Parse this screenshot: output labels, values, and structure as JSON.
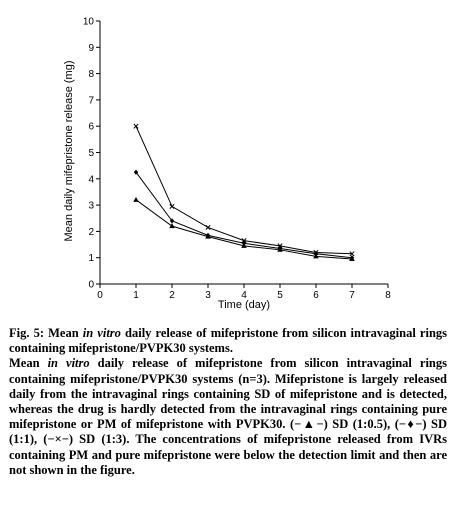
{
  "chart_data": {
    "type": "line",
    "xlabel": "Time (day)",
    "ylabel": "Mean daily mifepristone release (mg)",
    "xlim": [
      0,
      8
    ],
    "ylim": [
      0,
      10
    ],
    "x_ticks": [
      "0",
      "1",
      "2",
      "3",
      "4",
      "5",
      "6",
      "7",
      "8"
    ],
    "y_ticks": [
      "0",
      "1",
      "2",
      "3",
      "4",
      "5",
      "6",
      "7",
      "8",
      "9",
      "10"
    ],
    "grid": false,
    "legend": "none",
    "x": [
      1,
      2,
      3,
      4,
      5,
      6,
      7
    ],
    "series": [
      {
        "marker": "triangle",
        "values": [
          3.2,
          2.2,
          1.8,
          1.45,
          1.3,
          1.05,
          0.95
        ]
      },
      {
        "marker": "diamond",
        "values": [
          4.25,
          2.4,
          1.85,
          1.55,
          1.35,
          1.15,
          1.0
        ]
      },
      {
        "marker": "cross",
        "values": [
          6.0,
          2.95,
          2.15,
          1.65,
          1.45,
          1.2,
          1.15
        ]
      }
    ]
  },
  "caption": {
    "fig_label": "Fig. 5:",
    "title_pre": "Mean",
    "title_italic": "in vitro",
    "title_post": "daily release of mifepristone from silicon intravaginal rings containing mifepristone/PVPK30 systems.",
    "body_pre": "Mean",
    "body_italic": "in vitro",
    "body_post": "daily release of mifepristone from silicon intravaginal rings containing mifepristone/PVPK30 systems (n=3). Mifepristone is largely released daily from the intravaginal rings containing SD of mifepristone and is detected, whereas the drug is hardly detected from the intravaginal rings containing pure mifepristone or PM of mifepristone with PVPK30. (−▲−) SD (1:0.5), (−♦−) SD (1:1), (−×−) SD (1:3). The concentrations of mifepristone released from IVRs containing PM and pure mifepristone were below the detection limit and then are not shown in the figure."
  }
}
